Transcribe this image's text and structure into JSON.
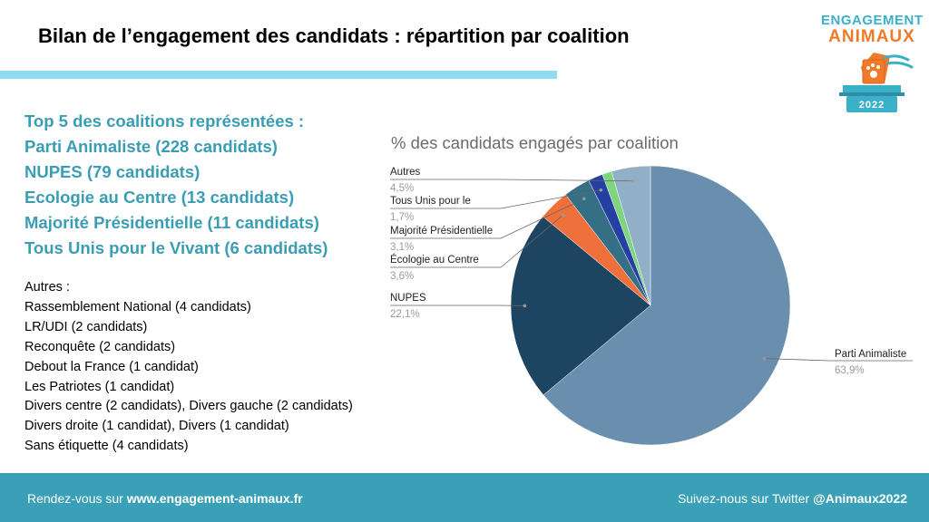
{
  "header": {
    "title": "Bilan de l’engagement des candidats : répartition par coalition"
  },
  "logo": {
    "line1": "ENGAGEMENT",
    "line2": "ANIMAUX",
    "year": "2022",
    "icon": "ballot-box-paw-icon",
    "colors": {
      "teal": "#3bb0c9",
      "orange": "#ee7a2a"
    }
  },
  "summary": {
    "top5": [
      "Top 5 des coalitions représentées :",
      "Parti Animaliste (228 candidats)",
      "NUPES (79 candidats)",
      "Ecologie au Centre (13 candidats)",
      "Majorité Présidentielle (11 candidats)",
      "Tous Unis pour le Vivant (6 candidats)"
    ],
    "others": [
      "Autres :",
      "Rassemblement National (4 candidats)",
      "LR/UDI (2 candidats)",
      "Reconquête (2 candidats)",
      "Debout la France (1 candidat)",
      "Les Patriotes (1 candidat)",
      "Divers centre (2 candidats), Divers gauche (2 candidats)",
      "Divers droite (1 candidat), Divers (1 candidat)",
      "Sans étiquette (4 candidats)"
    ]
  },
  "chart_data": {
    "type": "pie",
    "title": "% des candidats engagés par coalition",
    "start": "12 o'clock, clockwise",
    "slices": [
      {
        "label": "Parti Animaliste",
        "value": 63.9,
        "value_label": "63,9%",
        "color": "#6a8fae"
      },
      {
        "label": "NUPES",
        "value": 22.1,
        "value_label": "22,1%",
        "color": "#1d4461"
      },
      {
        "label": "Écologie au Centre",
        "value": 3.6,
        "value_label": "3,6%",
        "color": "#ef703a"
      },
      {
        "label": "Majorité Présidentielle",
        "value": 3.1,
        "value_label": "3,1%",
        "color": "#356f86"
      },
      {
        "label": "Tous Unis pour le",
        "value": 1.7,
        "value_label": "1,7%",
        "color": "#2540a2"
      },
      {
        "label": "",
        "value": 1.1,
        "value_label": "",
        "color": "#7ed57e"
      },
      {
        "label": "Autres",
        "value": 4.5,
        "value_label": "4,5%",
        "color": "#92afc8"
      }
    ]
  },
  "footer": {
    "left_prefix": "Rendez-vous sur",
    "left_link": "www.engagement-animaux.fr",
    "right_prefix": "Suivez-nous sur Twitter",
    "right_handle": "@Animaux2022"
  }
}
